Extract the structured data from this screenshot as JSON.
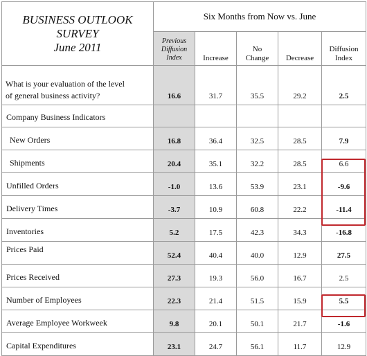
{
  "survey_title": [
    "BUSINESS OUTLOOK",
    "SURVEY",
    "June 2011"
  ],
  "period_header": "Six Months from Now vs. June",
  "column_headers": {
    "previous_diffusion_index": [
      "Previous",
      "Diffusion",
      "Index"
    ],
    "increase": "Increase",
    "no_change": [
      "No",
      "Change"
    ],
    "decrease": "Decrease",
    "diffusion_index": [
      "Diffusion",
      "Index"
    ]
  },
  "question": {
    "label_line1": "What is your evaluation of the level",
    "label_line2": "of general business activity?",
    "previous_index": "16.6",
    "increase": "31.7",
    "no_change": "35.5",
    "decrease": "29.2",
    "diffusion_index": "2.5"
  },
  "section_label": "Company Business Indicators",
  "rows": [
    {
      "label": "New Orders",
      "previous_index": "16.8",
      "increase": "36.4",
      "no_change": "32.5",
      "decrease": "28.5",
      "diffusion_index": "7.9"
    },
    {
      "label": "Shipments",
      "previous_index": "20.4",
      "increase": "35.1",
      "no_change": "32.2",
      "decrease": "28.5",
      "diffusion_index": "6.6"
    },
    {
      "label": "Unfilled Orders",
      "previous_index": "-1.0",
      "increase": "13.6",
      "no_change": "53.9",
      "decrease": "23.1",
      "diffusion_index": "-9.6"
    },
    {
      "label": "Delivery Times",
      "previous_index": "-3.7",
      "increase": "10.9",
      "no_change": "60.8",
      "decrease": "22.2",
      "diffusion_index": "-11.4"
    },
    {
      "label": "Inventories",
      "previous_index": "5.2",
      "increase": "17.5",
      "no_change": "42.3",
      "decrease": "34.3",
      "diffusion_index": "-16.8"
    },
    {
      "label": "Prices Paid",
      "previous_index": "52.4",
      "increase": "40.4",
      "no_change": "40.0",
      "decrease": "12.9",
      "diffusion_index": "27.5"
    },
    {
      "label": "Prices Received",
      "previous_index": "27.3",
      "increase": "19.3",
      "no_change": "56.0",
      "decrease": "16.7",
      "diffusion_index": "2.5"
    },
    {
      "label": "Number of Employees",
      "previous_index": "22.3",
      "increase": "21.4",
      "no_change": "51.5",
      "decrease": "15.9",
      "diffusion_index": "5.5"
    },
    {
      "label": "Average Employee Workweek",
      "previous_index": "9.8",
      "increase": "20.1",
      "no_change": "50.1",
      "decrease": "21.7",
      "diffusion_index": "-1.6"
    },
    {
      "label": "Capital Expenditures",
      "previous_index": "23.1",
      "increase": "24.7",
      "no_change": "56.1",
      "decrease": "11.7",
      "diffusion_index": "12.9"
    }
  ],
  "highlight_color": "#c0282d",
  "shade_color": "#dadada"
}
